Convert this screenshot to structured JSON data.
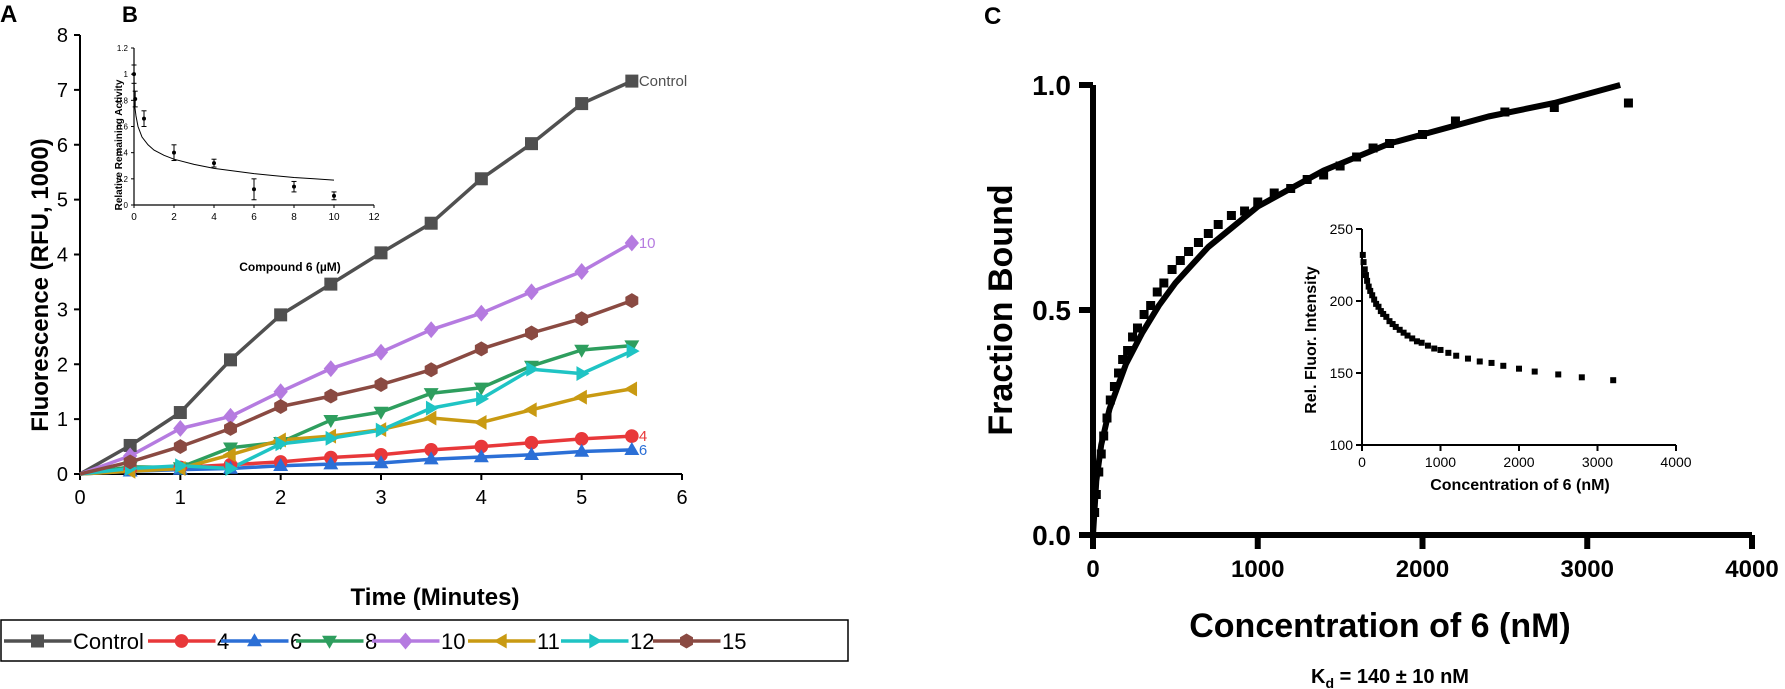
{
  "chart_data": [
    {
      "id": "A",
      "panel_label": "A",
      "type": "line",
      "xlabel": "Time (Minutes)",
      "ylabel": "Fluorescence (RFU, 1000)",
      "xlim": [
        0,
        6
      ],
      "ylim": [
        0,
        8
      ],
      "xticks": [
        0,
        1,
        2,
        3,
        4,
        5,
        6
      ],
      "yticks": [
        0,
        1,
        2,
        3,
        4,
        5,
        6,
        7,
        8
      ],
      "x": [
        0,
        0.5,
        1,
        1.5,
        2,
        2.5,
        3,
        3.5,
        4,
        4.5,
        5,
        5.5
      ],
      "series": [
        {
          "name": "Control",
          "end_label": "Control",
          "color": "#505050",
          "marker": "square",
          "values": [
            0,
            0.52,
            1.12,
            2.08,
            2.9,
            3.46,
            4.03,
            4.57,
            5.38,
            6.02,
            6.75,
            7.16
          ]
        },
        {
          "name": "4",
          "end_label": "4",
          "color": "#e8383a",
          "marker": "circle",
          "values": [
            0,
            0.08,
            0.12,
            0.17,
            0.22,
            0.3,
            0.35,
            0.44,
            0.5,
            0.57,
            0.64,
            0.69
          ]
        },
        {
          "name": "6",
          "end_label": "6",
          "color": "#2b6fd6",
          "marker": "triangle-up",
          "values": [
            0,
            0.05,
            0.08,
            0.1,
            0.15,
            0.18,
            0.2,
            0.27,
            0.31,
            0.35,
            0.41,
            0.44
          ]
        },
        {
          "name": "8",
          "color": "#2e9e5e",
          "marker": "triangle-down",
          "values": [
            0,
            0.13,
            0.12,
            0.48,
            0.58,
            0.98,
            1.13,
            1.47,
            1.57,
            1.97,
            2.26,
            2.34
          ]
        },
        {
          "name": "10",
          "end_label": "10",
          "color": "#b57be0",
          "marker": "diamond",
          "values": [
            0,
            0.33,
            0.83,
            1.05,
            1.5,
            1.92,
            2.22,
            2.63,
            2.93,
            3.32,
            3.69,
            4.21
          ]
        },
        {
          "name": "11",
          "color": "#c99a12",
          "marker": "triangle-left",
          "values": [
            0,
            0.05,
            0.1,
            0.35,
            0.62,
            0.69,
            0.81,
            1.02,
            0.94,
            1.17,
            1.4,
            1.55
          ]
        },
        {
          "name": "12",
          "color": "#1fc4c4",
          "marker": "triangle-right",
          "values": [
            0,
            0.1,
            0.15,
            0.1,
            0.55,
            0.65,
            0.8,
            1.2,
            1.37,
            1.91,
            1.83,
            2.24
          ]
        },
        {
          "name": "15",
          "color": "#8a4a42",
          "marker": "hexagon",
          "values": [
            0,
            0.22,
            0.5,
            0.83,
            1.23,
            1.42,
            1.63,
            1.9,
            2.28,
            2.57,
            2.83,
            3.16
          ]
        }
      ]
    },
    {
      "id": "B",
      "panel_label": "B",
      "type": "scatter",
      "xlabel": "Compound 6 (µM)",
      "ylabel": "Relative Remaining Activity",
      "xlim": [
        0,
        12
      ],
      "ylim": [
        0,
        1.2
      ],
      "xticks": [
        0,
        2,
        4,
        6,
        8,
        10,
        12
      ],
      "yticks": [
        0,
        0.2,
        0.4,
        0.6,
        0.8,
        1,
        1.2
      ],
      "ytick_labels": [
        "0",
        "0.2",
        "0.4",
        "0.6",
        "0.8",
        "1",
        "1.2"
      ],
      "points": [
        {
          "x": 0,
          "y": 1.0,
          "err": 0.07
        },
        {
          "x": 0.06,
          "y": 0.81,
          "err": 0.06
        },
        {
          "x": 0.5,
          "y": 0.66,
          "err": 0.06
        },
        {
          "x": 2,
          "y": 0.4,
          "err": 0.06
        },
        {
          "x": 4,
          "y": 0.32,
          "err": 0.03
        },
        {
          "x": 6,
          "y": 0.12,
          "err": 0.08
        },
        {
          "x": 8,
          "y": 0.14,
          "err": 0.04
        },
        {
          "x": 10,
          "y": 0.07,
          "err": 0.03
        }
      ],
      "fit_curve": {
        "x": [
          0.02,
          0.05,
          0.1,
          0.2,
          0.4,
          0.7,
          1,
          1.5,
          2,
          3,
          4,
          5,
          6,
          7,
          8,
          9,
          10
        ],
        "y": [
          0.78,
          0.74,
          0.68,
          0.6,
          0.52,
          0.46,
          0.42,
          0.38,
          0.35,
          0.31,
          0.28,
          0.26,
          0.24,
          0.225,
          0.21,
          0.2,
          0.19
        ]
      }
    },
    {
      "id": "C",
      "panel_label": "C",
      "type": "scatter",
      "xlabel": "Concentration of 6 (nM)",
      "ylabel": "Fraction Bound",
      "xlim": [
        0,
        4000
      ],
      "ylim": [
        0,
        1.0
      ],
      "xticks": [
        0,
        1000,
        2000,
        3000,
        4000
      ],
      "yticks": [
        0,
        0.5,
        1.0
      ],
      "ytick_labels": [
        "0.0",
        "0.5",
        "1.0"
      ],
      "annotation": "K",
      "annotation_sub": "d",
      "annotation_rest": " = 140 ± 10 nM",
      "points": {
        "x": [
          10,
          20,
          35,
          50,
          65,
          85,
          105,
          130,
          155,
          180,
          210,
          240,
          270,
          310,
          350,
          390,
          430,
          480,
          530,
          580,
          640,
          700,
          760,
          840,
          920,
          1000,
          1100,
          1200,
          1300,
          1400,
          1500,
          1600,
          1700,
          1800,
          2000,
          2200,
          2500,
          2800,
          3250
        ],
        "y": [
          0.05,
          0.09,
          0.14,
          0.18,
          0.22,
          0.26,
          0.3,
          0.33,
          0.36,
          0.39,
          0.41,
          0.44,
          0.46,
          0.49,
          0.51,
          0.54,
          0.56,
          0.59,
          0.61,
          0.63,
          0.65,
          0.67,
          0.69,
          0.71,
          0.72,
          0.74,
          0.76,
          0.77,
          0.79,
          0.8,
          0.82,
          0.84,
          0.86,
          0.87,
          0.89,
          0.92,
          0.94,
          0.95,
          0.96
        ]
      },
      "fit_curve": {
        "x": [
          0,
          20,
          50,
          100,
          150,
          200,
          300,
          400,
          500,
          600,
          700,
          800,
          1000,
          1200,
          1400,
          1600,
          1800,
          2000,
          2400,
          2800,
          3200
        ],
        "y": [
          0.0,
          0.12,
          0.2,
          0.28,
          0.33,
          0.38,
          0.45,
          0.51,
          0.56,
          0.6,
          0.64,
          0.67,
          0.73,
          0.77,
          0.81,
          0.84,
          0.87,
          0.89,
          0.93,
          0.96,
          1.0
        ]
      }
    },
    {
      "id": "C_inset",
      "type": "scatter",
      "xlabel": "Concentration of 6 (nM)",
      "ylabel": "Rel. Fluor. Intensity",
      "xlim": [
        0,
        4000
      ],
      "ylim": [
        100,
        250
      ],
      "xticks": [
        0,
        1000,
        2000,
        3000,
        4000
      ],
      "yticks": [
        100,
        150,
        200,
        250
      ],
      "points": {
        "x": [
          10,
          20,
          35,
          50,
          65,
          85,
          105,
          130,
          155,
          180,
          210,
          240,
          270,
          310,
          350,
          390,
          430,
          480,
          530,
          580,
          640,
          700,
          760,
          840,
          920,
          1000,
          1100,
          1200,
          1350,
          1500,
          1650,
          1800,
          2000,
          2200,
          2500,
          2800,
          3200
        ],
        "y": [
          232,
          227,
          222,
          218,
          214,
          210,
          207,
          204,
          201,
          198,
          196,
          193,
          191,
          189,
          186,
          184,
          182,
          180,
          178,
          176,
          174,
          172,
          171,
          169,
          167,
          166,
          164,
          162,
          160,
          158,
          157,
          155,
          153,
          151,
          149,
          147,
          145
        ]
      }
    }
  ],
  "legend": {
    "entries": [
      {
        "label": "Control",
        "series_index": 0
      },
      {
        "label": "4",
        "series_index": 1
      },
      {
        "label": "6",
        "series_index": 2
      },
      {
        "label": "8",
        "series_index": 3
      },
      {
        "label": "10",
        "series_index": 4
      },
      {
        "label": "11",
        "series_index": 5
      },
      {
        "label": "12",
        "series_index": 6
      },
      {
        "label": "15",
        "series_index": 7
      }
    ]
  }
}
